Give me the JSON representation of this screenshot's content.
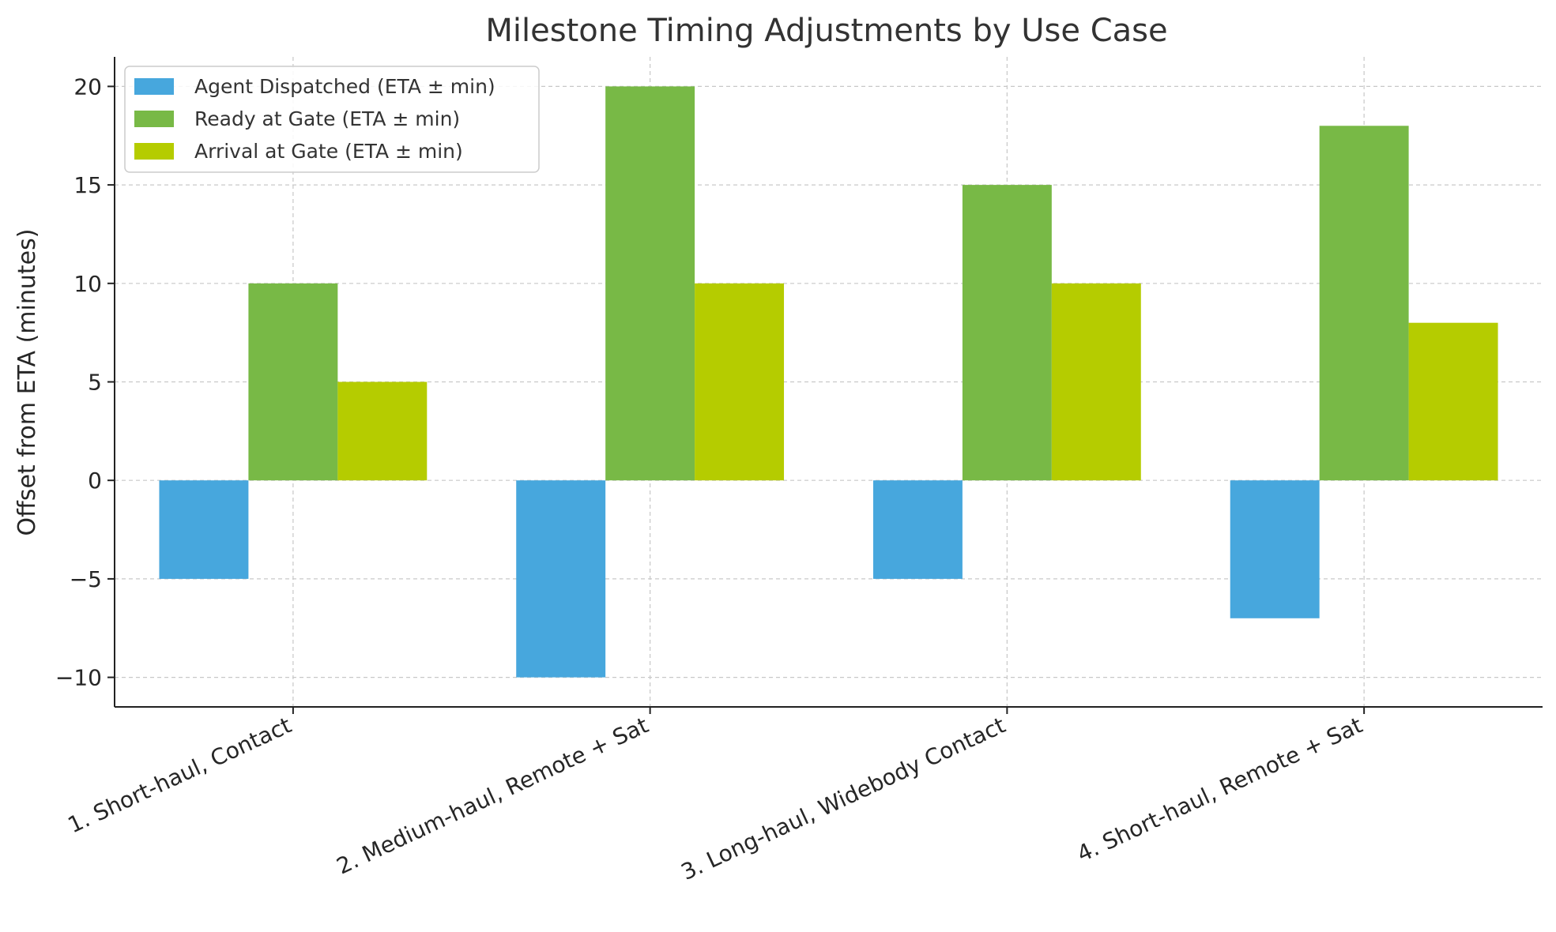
{
  "chart_data": {
    "type": "bar",
    "title": "Milestone Timing Adjustments by Use Case",
    "ylabel": "Offset from ETA (minutes)",
    "xlabel": "",
    "categories": [
      "1. Short-haul, Contact",
      "2. Medium-haul, Remote + Sat",
      "3. Long-haul, Widebody Contact",
      "4. Short-haul, Remote + Sat"
    ],
    "series": [
      {
        "name": "Agent Dispatched (ETA ± min)",
        "color": "#47a7dd",
        "values": [
          -5,
          -10,
          -5,
          -7
        ]
      },
      {
        "name": "Ready at Gate (ETA ± min)",
        "color": "#78b946",
        "values": [
          10,
          20,
          15,
          18
        ]
      },
      {
        "name": "Arrival at Gate (ETA ± min)",
        "color": "#b5cc00",
        "values": [
          5,
          10,
          10,
          8
        ]
      }
    ],
    "ylim": [
      -11.5,
      21.5
    ],
    "yticks": [
      -10,
      -5,
      0,
      5,
      10,
      15,
      20
    ],
    "ytick_labels": [
      "−10",
      "−5",
      "0",
      "5",
      "10",
      "15",
      "20"
    ],
    "grid": true,
    "legend_position": "top-left"
  }
}
